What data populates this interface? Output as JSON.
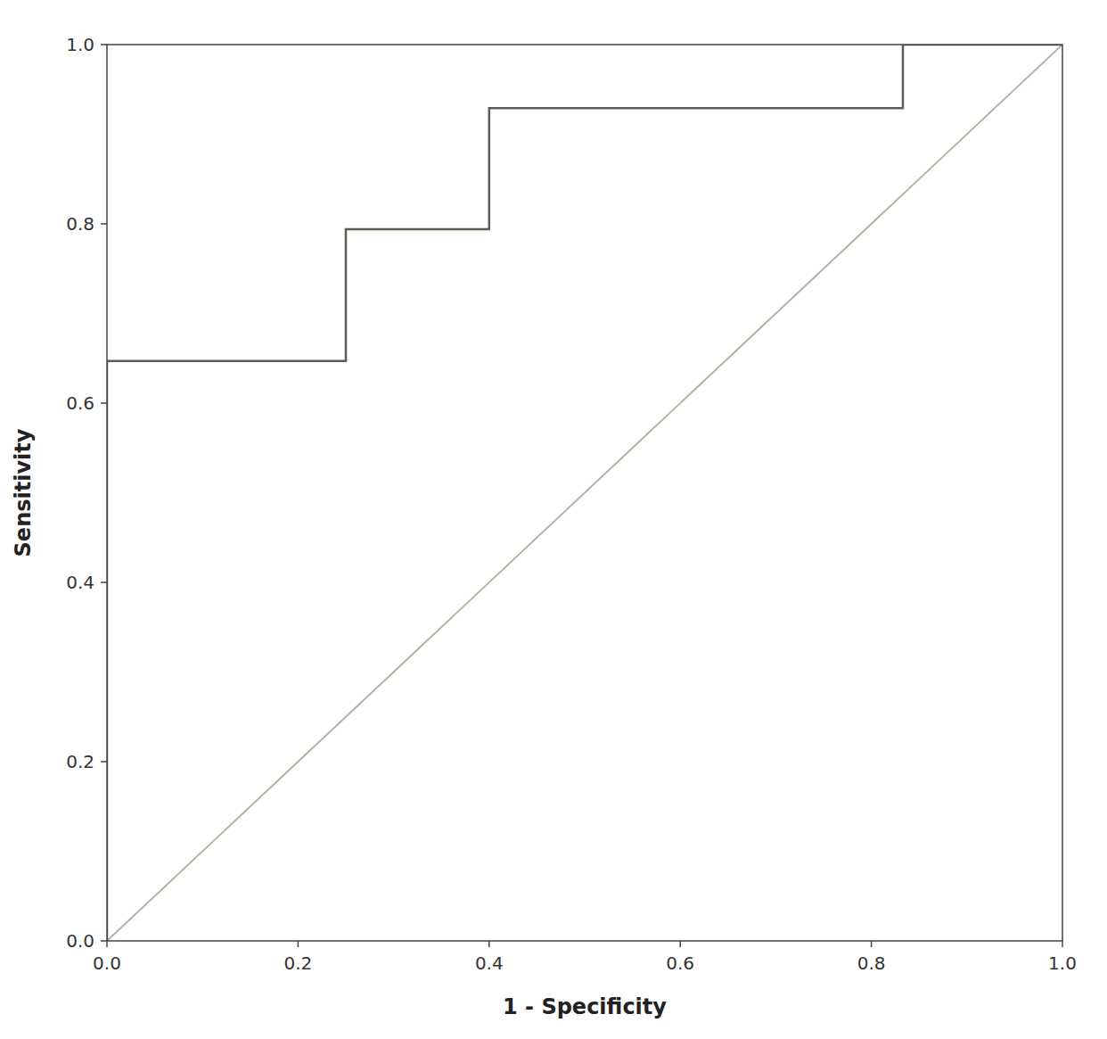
{
  "chart_data": {
    "type": "line",
    "xlabel": "1 - Specificity",
    "ylabel": "Sensitivity",
    "series": [
      {
        "color": "#b8b0a0",
        "x": [
          0.0,
          1.0
        ],
        "values": [
          0.0,
          1.0
        ]
      },
      {
        "color": "#5c5c50",
        "x": [
          0.0,
          0.0,
          0.25,
          0.25,
          0.4,
          0.4,
          0.833,
          0.833,
          1.0
        ],
        "values": [
          0.0,
          0.647,
          0.647,
          0.794,
          0.794,
          0.929,
          0.929,
          1.0,
          1.0
        ]
      }
    ],
    "xlim": [
      0.0,
      1.0
    ],
    "ylim": [
      0.0,
      1.0
    ],
    "xticks": [
      {
        "value": 0.0,
        "label": "0.0"
      },
      0.2,
      0.4,
      0.6,
      0.8,
      {
        "value": 1.0,
        "label": "1.0"
      }
    ],
    "yticks": [
      {
        "value": 0.0,
        "label": "0.0"
      },
      0.2,
      0.4,
      0.6,
      0.8,
      {
        "value": 1.0,
        "label": "1.0"
      }
    ],
    "grid": false
  }
}
